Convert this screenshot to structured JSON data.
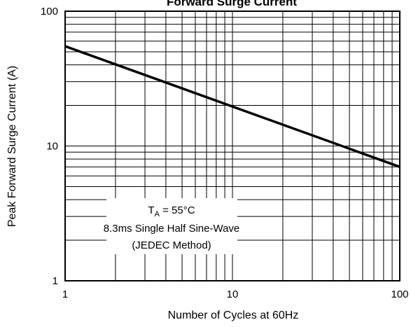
{
  "chart_data": {
    "type": "line",
    "title": "Forward Surge Current",
    "xlabel": "Number of Cycles at 60Hz",
    "ylabel": "Peak Forward Surge Current (A)",
    "xscale": "log",
    "yscale": "log",
    "xlim": [
      1,
      100
    ],
    "ylim": [
      1,
      100
    ],
    "grid": true,
    "x_ticks": [
      "1",
      "10",
      "100"
    ],
    "y_ticks": [
      "1",
      "10",
      "100"
    ],
    "series": [
      {
        "x": [
          1,
          100
        ],
        "y": [
          55,
          7
        ]
      }
    ],
    "annotation": {
      "condition_main": "T",
      "condition_sub": "A",
      "condition_value": " = 55°C",
      "line2": "8.3ms Single Half Sine-Wave",
      "line3": "(JEDEC Method)"
    },
    "colors": {
      "line": "#000000",
      "grid": "#000000"
    }
  }
}
